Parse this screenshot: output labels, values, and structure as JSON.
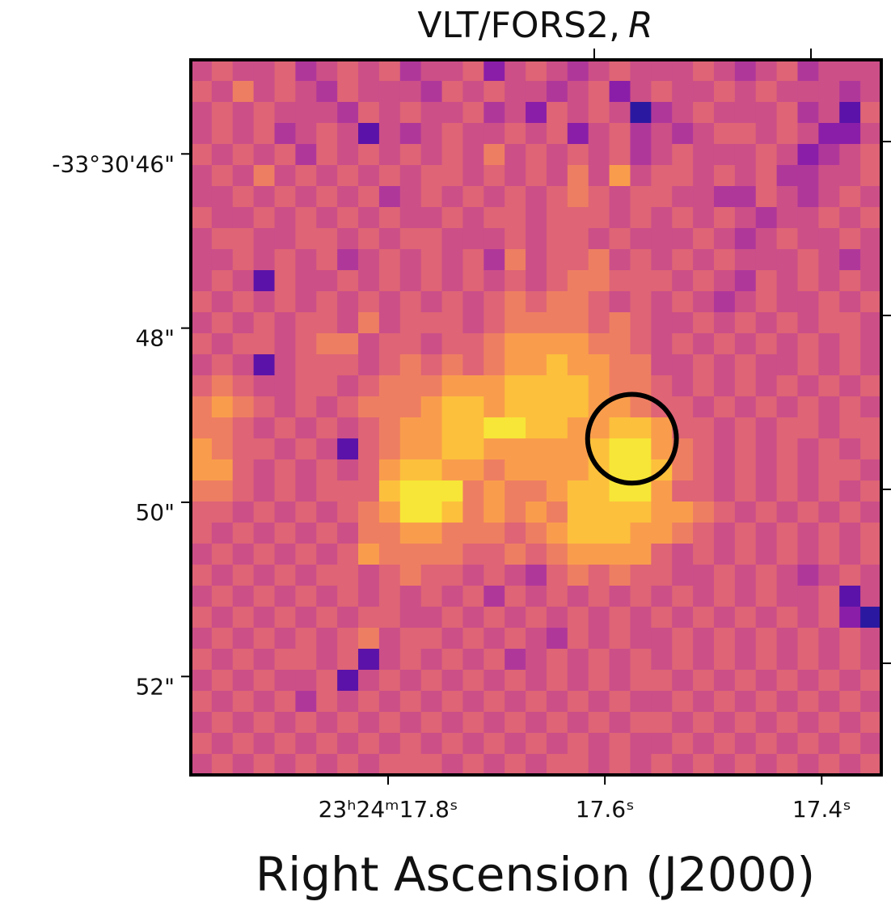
{
  "chart_data": {
    "type": "heatmap",
    "title": "VLT/FORS2,",
    "filter": "R",
    "x_label": "Right Ascension (J2000)",
    "xlim": [
      17.982,
      17.345
    ],
    "ylim": [
      53.13,
      44.92
    ],
    "xticks": [
      {
        "value": 17.8,
        "label": "23ʰ24ᵐ17.8ˢ"
      },
      {
        "value": 17.6,
        "label": "17.6ˢ"
      },
      {
        "value": 17.4,
        "label": "17.4ˢ"
      }
    ],
    "yticks": [
      {
        "value": 46,
        "label": "-33°30'46\""
      },
      {
        "value": 48,
        "label": "48\""
      },
      {
        "value": 50,
        "label": "50\""
      },
      {
        "value": 52,
        "label": "52\""
      }
    ],
    "zlim": [
      0,
      9
    ],
    "colormap": [
      "#2b18a0",
      "#5b12a8",
      "#8a1ea8",
      "#b0379a",
      "#cc4f88",
      "#de6476",
      "#ee7e62",
      "#f99d4c",
      "#fcc03c",
      "#f7e637"
    ],
    "marker": {
      "x": 17.575,
      "y": 49.27,
      "radius": 0.51,
      "color": "#000000"
    },
    "values": [
      [
        4,
        5,
        4,
        4,
        5,
        3,
        4,
        5,
        4,
        5,
        3,
        4,
        4,
        5,
        2,
        4,
        5,
        4,
        3,
        4,
        5,
        4,
        4,
        4,
        5,
        4,
        3,
        4,
        5,
        3,
        4,
        4,
        4
      ],
      [
        5,
        4,
        6,
        4,
        5,
        4,
        3,
        5,
        4,
        4,
        4,
        3,
        5,
        4,
        5,
        4,
        4,
        3,
        4,
        5,
        2,
        4,
        5,
        4,
        4,
        5,
        4,
        5,
        4,
        4,
        4,
        3,
        4
      ],
      [
        4,
        5,
        4,
        5,
        4,
        4,
        4,
        3,
        5,
        4,
        5,
        4,
        4,
        5,
        3,
        4,
        2,
        5,
        4,
        5,
        4,
        0,
        3,
        4,
        5,
        4,
        4,
        4,
        5,
        3,
        4,
        1,
        5
      ],
      [
        4,
        5,
        4,
        5,
        3,
        4,
        5,
        4,
        1,
        4,
        3,
        4,
        5,
        4,
        4,
        5,
        4,
        5,
        2,
        4,
        5,
        3,
        4,
        3,
        4,
        5,
        5,
        4,
        5,
        4,
        2,
        2,
        4
      ],
      [
        5,
        4,
        5,
        4,
        5,
        3,
        5,
        4,
        5,
        4,
        5,
        4,
        5,
        4,
        6,
        4,
        5,
        4,
        5,
        4,
        5,
        3,
        4,
        5,
        4,
        4,
        4,
        5,
        4,
        2,
        3,
        4,
        5
      ],
      [
        4,
        5,
        4,
        6,
        4,
        5,
        4,
        5,
        4,
        5,
        4,
        5,
        5,
        4,
        5,
        4,
        5,
        4,
        6,
        4,
        7,
        4,
        5,
        5,
        4,
        5,
        4,
        5,
        3,
        3,
        4,
        4,
        5
      ],
      [
        4,
        4,
        5,
        4,
        5,
        4,
        5,
        4,
        5,
        3,
        4,
        5,
        4,
        5,
        4,
        5,
        4,
        5,
        6,
        5,
        4,
        5,
        5,
        4,
        4,
        3,
        3,
        5,
        4,
        3,
        4,
        5,
        4
      ],
      [
        5,
        4,
        4,
        5,
        4,
        5,
        4,
        5,
        4,
        5,
        4,
        4,
        5,
        4,
        5,
        5,
        4,
        5,
        5,
        5,
        4,
        5,
        4,
        5,
        4,
        5,
        4,
        3,
        4,
        4,
        5,
        4,
        5
      ],
      [
        4,
        5,
        5,
        4,
        4,
        5,
        5,
        4,
        5,
        4,
        5,
        5,
        4,
        4,
        4,
        5,
        4,
        5,
        5,
        4,
        5,
        4,
        4,
        4,
        5,
        4,
        3,
        4,
        5,
        4,
        4,
        5,
        4
      ],
      [
        4,
        4,
        5,
        4,
        5,
        4,
        5,
        3,
        4,
        5,
        4,
        5,
        4,
        5,
        3,
        6,
        4,
        5,
        5,
        6,
        4,
        5,
        4,
        5,
        4,
        5,
        4,
        4,
        4,
        5,
        4,
        3,
        4
      ],
      [
        4,
        5,
        4,
        1,
        5,
        4,
        4,
        5,
        4,
        5,
        4,
        5,
        4,
        5,
        4,
        5,
        4,
        5,
        6,
        6,
        5,
        5,
        5,
        4,
        5,
        4,
        3,
        5,
        4,
        5,
        4,
        5,
        4
      ],
      [
        5,
        4,
        5,
        4,
        5,
        4,
        5,
        4,
        5,
        4,
        5,
        4,
        5,
        4,
        5,
        6,
        5,
        6,
        6,
        5,
        4,
        5,
        4,
        5,
        4,
        3,
        4,
        5,
        4,
        4,
        5,
        4,
        5
      ],
      [
        4,
        5,
        4,
        5,
        4,
        5,
        5,
        4,
        6,
        4,
        5,
        5,
        5,
        4,
        5,
        6,
        6,
        6,
        6,
        5,
        6,
        5,
        4,
        4,
        5,
        4,
        5,
        4,
        5,
        4,
        5,
        5,
        4
      ],
      [
        5,
        4,
        5,
        5,
        4,
        5,
        6,
        6,
        4,
        5,
        5,
        4,
        5,
        5,
        6,
        7,
        7,
        7,
        7,
        6,
        6,
        5,
        4,
        5,
        4,
        5,
        4,
        5,
        4,
        5,
        4,
        5,
        4
      ],
      [
        4,
        5,
        4,
        1,
        4,
        5,
        5,
        5,
        4,
        5,
        6,
        5,
        6,
        5,
        6,
        7,
        7,
        8,
        7,
        7,
        6,
        6,
        4,
        4,
        5,
        4,
        5,
        4,
        4,
        5,
        4,
        5,
        4
      ],
      [
        5,
        6,
        5,
        4,
        4,
        5,
        5,
        4,
        5,
        6,
        6,
        6,
        7,
        7,
        7,
        8,
        8,
        8,
        8,
        7,
        6,
        6,
        5,
        4,
        5,
        4,
        5,
        4,
        5,
        4,
        5,
        4,
        5
      ],
      [
        6,
        7,
        6,
        5,
        4,
        5,
        4,
        5,
        6,
        6,
        6,
        7,
        8,
        8,
        7,
        8,
        8,
        8,
        8,
        7,
        7,
        6,
        5,
        5,
        4,
        5,
        4,
        5,
        4,
        5,
        4,
        5,
        4
      ],
      [
        6,
        6,
        5,
        4,
        5,
        4,
        5,
        4,
        5,
        6,
        7,
        7,
        8,
        8,
        9,
        9,
        8,
        8,
        7,
        7,
        8,
        8,
        7,
        5,
        5,
        4,
        5,
        4,
        5,
        5,
        4,
        5,
        5
      ],
      [
        7,
        6,
        5,
        5,
        4,
        5,
        4,
        1,
        5,
        6,
        7,
        7,
        8,
        8,
        7,
        7,
        7,
        7,
        7,
        8,
        9,
        9,
        7,
        6,
        5,
        4,
        5,
        4,
        5,
        4,
        5,
        4,
        5
      ],
      [
        7,
        7,
        5,
        4,
        5,
        4,
        5,
        4,
        5,
        7,
        8,
        8,
        7,
        7,
        6,
        7,
        7,
        7,
        7,
        8,
        9,
        9,
        8,
        6,
        5,
        4,
        5,
        4,
        5,
        4,
        5,
        5,
        4
      ],
      [
        6,
        6,
        5,
        4,
        5,
        4,
        5,
        5,
        5,
        8,
        9,
        9,
        9,
        6,
        7,
        6,
        6,
        7,
        8,
        8,
        9,
        9,
        7,
        5,
        5,
        4,
        5,
        4,
        5,
        4,
        5,
        4,
        5
      ],
      [
        5,
        5,
        4,
        5,
        4,
        5,
        4,
        5,
        6,
        7,
        9,
        9,
        8,
        6,
        7,
        6,
        7,
        6,
        8,
        8,
        8,
        8,
        7,
        7,
        6,
        5,
        4,
        5,
        4,
        5,
        4,
        5,
        4
      ],
      [
        5,
        4,
        5,
        4,
        5,
        4,
        5,
        4,
        6,
        6,
        7,
        7,
        6,
        6,
        6,
        5,
        6,
        7,
        8,
        8,
        8,
        7,
        7,
        6,
        5,
        4,
        5,
        4,
        5,
        4,
        5,
        4,
        5
      ],
      [
        4,
        5,
        4,
        5,
        4,
        5,
        4,
        5,
        7,
        6,
        6,
        6,
        6,
        5,
        5,
        6,
        5,
        6,
        7,
        7,
        7,
        7,
        5,
        4,
        5,
        4,
        5,
        4,
        5,
        4,
        5,
        4,
        5
      ],
      [
        5,
        4,
        5,
        4,
        5,
        4,
        5,
        5,
        4,
        5,
        6,
        5,
        5,
        4,
        5,
        4,
        3,
        5,
        6,
        5,
        6,
        5,
        5,
        4,
        4,
        5,
        4,
        5,
        4,
        3,
        4,
        5,
        4
      ],
      [
        4,
        5,
        4,
        5,
        4,
        5,
        4,
        5,
        4,
        5,
        4,
        5,
        4,
        5,
        3,
        5,
        4,
        5,
        4,
        5,
        4,
        5,
        4,
        5,
        4,
        5,
        4,
        5,
        4,
        4,
        5,
        1,
        4
      ],
      [
        5,
        4,
        5,
        4,
        5,
        4,
        5,
        4,
        5,
        5,
        4,
        4,
        5,
        4,
        5,
        4,
        5,
        4,
        5,
        4,
        5,
        4,
        5,
        4,
        5,
        4,
        5,
        4,
        5,
        4,
        5,
        2,
        0
      ],
      [
        4,
        5,
        4,
        5,
        4,
        5,
        4,
        5,
        6,
        4,
        5,
        5,
        4,
        5,
        4,
        5,
        4,
        3,
        5,
        4,
        5,
        4,
        4,
        5,
        4,
        5,
        4,
        5,
        4,
        5,
        4,
        5,
        4
      ],
      [
        5,
        4,
        5,
        4,
        5,
        5,
        4,
        5,
        1,
        4,
        5,
        4,
        5,
        4,
        5,
        3,
        4,
        5,
        4,
        5,
        4,
        5,
        4,
        5,
        4,
        5,
        4,
        5,
        4,
        5,
        4,
        5,
        4
      ],
      [
        4,
        5,
        4,
        5,
        4,
        4,
        5,
        1,
        4,
        5,
        4,
        5,
        4,
        5,
        4,
        5,
        4,
        5,
        4,
        5,
        4,
        5,
        5,
        4,
        5,
        4,
        5,
        4,
        5,
        4,
        5,
        4,
        5
      ],
      [
        5,
        4,
        5,
        4,
        5,
        3,
        5,
        4,
        5,
        4,
        5,
        4,
        5,
        4,
        5,
        4,
        5,
        4,
        5,
        4,
        5,
        4,
        4,
        5,
        4,
        5,
        4,
        5,
        4,
        5,
        4,
        5,
        4
      ],
      [
        4,
        5,
        4,
        5,
        4,
        5,
        4,
        5,
        4,
        5,
        4,
        5,
        4,
        5,
        4,
        5,
        4,
        5,
        4,
        5,
        4,
        5,
        5,
        4,
        5,
        4,
        5,
        4,
        5,
        4,
        5,
        4,
        5
      ],
      [
        5,
        4,
        5,
        4,
        5,
        4,
        5,
        4,
        5,
        4,
        5,
        4,
        5,
        4,
        5,
        4,
        5,
        4,
        5,
        4,
        5,
        4,
        4,
        5,
        4,
        5,
        4,
        5,
        4,
        5,
        4,
        5,
        4
      ],
      [
        4,
        5,
        4,
        5,
        4,
        5,
        4,
        5,
        4,
        5,
        5,
        5,
        4,
        5,
        4,
        5,
        4,
        5,
        5,
        4,
        5,
        4,
        5,
        4,
        5,
        4,
        5,
        4,
        5,
        4,
        5,
        4,
        5
      ]
    ]
  }
}
